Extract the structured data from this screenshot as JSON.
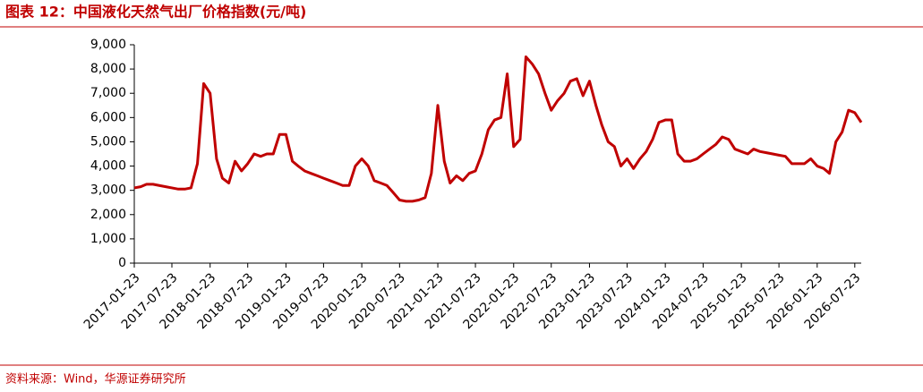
{
  "chart_data": {
    "type": "line",
    "title": "图表 12：中国液化天然气出厂价格指数(元/吨)",
    "source": "资料来源：Wind，华源证券研究所",
    "x": [
      "2017-01-23",
      "2017-02-23",
      "2017-03-23",
      "2017-04-23",
      "2017-05-23",
      "2017-06-23",
      "2017-07-23",
      "2017-08-23",
      "2017-09-23",
      "2017-10-23",
      "2017-11-23",
      "2017-12-23",
      "2018-01-23",
      "2018-02-23",
      "2018-03-23",
      "2018-04-23",
      "2018-05-23",
      "2018-06-23",
      "2018-07-23",
      "2018-08-23",
      "2018-09-23",
      "2018-10-23",
      "2018-11-23",
      "2018-12-23",
      "2019-01-23",
      "2019-02-23",
      "2019-03-23",
      "2019-04-23",
      "2019-05-23",
      "2019-06-23",
      "2019-07-23",
      "2019-08-23",
      "2019-09-23",
      "2019-10-23",
      "2019-11-23",
      "2019-12-23",
      "2020-01-23",
      "2020-02-23",
      "2020-03-23",
      "2020-04-23",
      "2020-05-23",
      "2020-06-23",
      "2020-07-23",
      "2020-08-23",
      "2020-09-23",
      "2020-10-23",
      "2020-11-23",
      "2020-12-23",
      "2021-01-23",
      "2021-02-23",
      "2021-03-23",
      "2021-04-23",
      "2021-05-23",
      "2021-06-23",
      "2021-07-23",
      "2021-08-23",
      "2021-09-23",
      "2021-10-23",
      "2021-11-23",
      "2021-12-23",
      "2022-01-23",
      "2022-02-23",
      "2022-03-23",
      "2022-04-23",
      "2022-05-23",
      "2022-06-23",
      "2022-07-23",
      "2022-08-23",
      "2022-09-23",
      "2022-10-23",
      "2022-11-23",
      "2022-12-23",
      "2023-01-23",
      "2023-02-23",
      "2023-03-23",
      "2023-04-23",
      "2023-05-23",
      "2023-06-23",
      "2023-07-23",
      "2023-08-23",
      "2023-09-23",
      "2023-10-23",
      "2023-11-23",
      "2023-12-23",
      "2024-01-23",
      "2024-02-23",
      "2024-03-23",
      "2024-04-23",
      "2024-05-23",
      "2024-06-23",
      "2024-07-23",
      "2024-08-23",
      "2024-09-23",
      "2024-10-23",
      "2024-11-23",
      "2024-12-23",
      "2025-01-23",
      "2025-02-23",
      "2025-03-23",
      "2025-04-23",
      "2025-05-23",
      "2025-06-23",
      "2025-07-23",
      "2025-08-23",
      "2025-09-23",
      "2025-10-23",
      "2025-11-23",
      "2025-12-23",
      "2026-01-23",
      "2026-02-23",
      "2026-03-23",
      "2026-04-23",
      "2026-05-23",
      "2026-06-23",
      "2026-07-23",
      "2026-08-23"
    ],
    "series": [
      {
        "color": "#c00000",
        "values": [
          3100,
          3150,
          3250,
          3250,
          3200,
          3150,
          3100,
          3050,
          3050,
          3100,
          4100,
          7400,
          7000,
          4300,
          3500,
          3300,
          4200,
          3800,
          4100,
          4500,
          4400,
          4500,
          4500,
          5300,
          5300,
          4200,
          4000,
          3800,
          3700,
          3600,
          3500,
          3400,
          3300,
          3200,
          3200,
          4000,
          4300,
          4000,
          3400,
          3300,
          3200,
          2900,
          2600,
          2550,
          2550,
          2600,
          2700,
          3700,
          6500,
          4200,
          3300,
          3600,
          3400,
          3700,
          3800,
          4500,
          5500,
          5900,
          6000,
          7800,
          4800,
          5100,
          8500,
          8200,
          7800,
          7000,
          6300,
          6700,
          7000,
          7500,
          7600,
          6900,
          7500,
          6500,
          5700,
          5000,
          4800,
          4000,
          4300,
          3900,
          4300,
          4600,
          5100,
          5800,
          5900,
          5900,
          4500,
          4200,
          4200,
          4300,
          4500,
          4700,
          4900,
          5200,
          5100,
          4700,
          4600,
          4500,
          4700,
          4600,
          4550,
          4500,
          4450,
          4400,
          4100,
          4100,
          4100,
          4300,
          4000,
          3900,
          3700,
          5000,
          5400,
          6300,
          6200,
          5800
        ]
      }
    ],
    "xlim": [
      "2017-01-23",
      "2026-08-23"
    ],
    "xticks": [
      "2017-01-23",
      "2017-07-23",
      "2018-01-23",
      "2018-07-23",
      "2019-01-23",
      "2019-07-23",
      "2020-01-23",
      "2020-07-23",
      "2021-01-23",
      "2021-07-23",
      "2022-01-23",
      "2022-07-23",
      "2023-01-23",
      "2023-07-23",
      "2024-01-23",
      "2024-07-23",
      "2025-01-23",
      "2025-07-23",
      "2026-01-23",
      "2026-07-23"
    ],
    "ylim": [
      0,
      9000
    ],
    "yticks": [
      0,
      {
        "value": 1000,
        "label": "1,000"
      },
      {
        "value": 2000,
        "label": "2,000"
      },
      {
        "value": 3000,
        "label": "3,000"
      },
      {
        "value": 4000,
        "label": "4,000"
      },
      {
        "value": 5000,
        "label": "5,000"
      },
      {
        "value": 6000,
        "label": "6,000"
      },
      {
        "value": 7000,
        "label": "7,000"
      },
      {
        "value": 8000,
        "label": "8,000"
      },
      {
        "value": 9000,
        "label": "9,000"
      }
    ]
  }
}
